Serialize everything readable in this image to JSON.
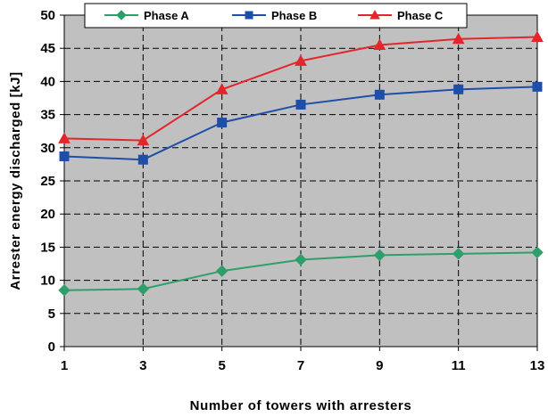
{
  "chart_data": {
    "type": "line",
    "xlabel": "Number of towers with arresters",
    "ylabel": "Arrester energy discharged [kJ]",
    "x": [
      1,
      3,
      5,
      7,
      9,
      11,
      13
    ],
    "xlim": [
      1,
      13
    ],
    "ylim": [
      0,
      50
    ],
    "yticks": [
      0,
      5,
      10,
      15,
      20,
      25,
      30,
      35,
      40,
      45,
      50
    ],
    "grid": true,
    "legend_position": "top-center",
    "plot_background": "#c0c0c0",
    "series": [
      {
        "name": "Phase A",
        "color": "#2e9e6b",
        "marker": "diamond",
        "values": [
          8.5,
          8.7,
          11.4,
          13.1,
          13.8,
          14.0,
          14.2
        ]
      },
      {
        "name": "Phase B",
        "color": "#1f4ea8",
        "marker": "square",
        "values": [
          28.7,
          28.2,
          33.8,
          36.5,
          38.0,
          38.8,
          39.2
        ]
      },
      {
        "name": "Phase C",
        "color": "#e3262b",
        "marker": "triangle",
        "values": [
          31.4,
          31.1,
          38.8,
          43.1,
          45.5,
          46.4,
          46.7
        ]
      }
    ]
  }
}
